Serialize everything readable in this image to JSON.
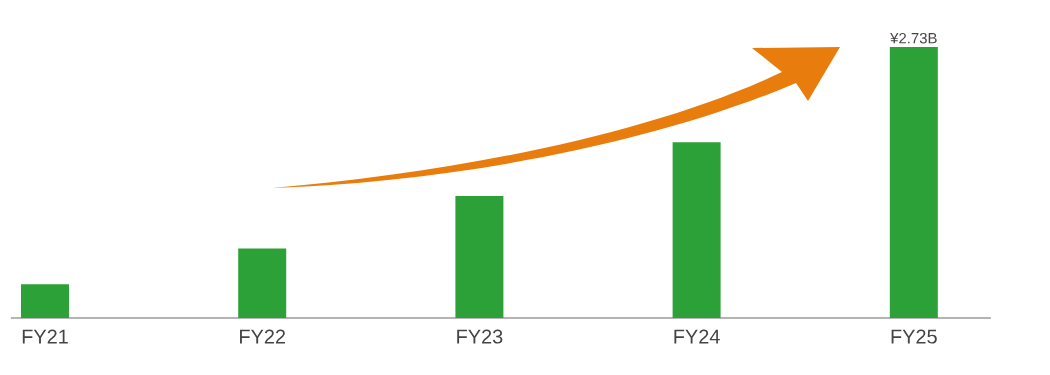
{
  "chart_data": {
    "type": "bar",
    "categories": [
      "FY21",
      "FY22",
      "FY23",
      "FY24",
      "FY25"
    ],
    "values": [
      0.34,
      0.7,
      1.23,
      1.77,
      2.73
    ],
    "value_labels": [
      null,
      null,
      null,
      null,
      "¥2.73B"
    ],
    "color": "#2ca137"
  }
}
